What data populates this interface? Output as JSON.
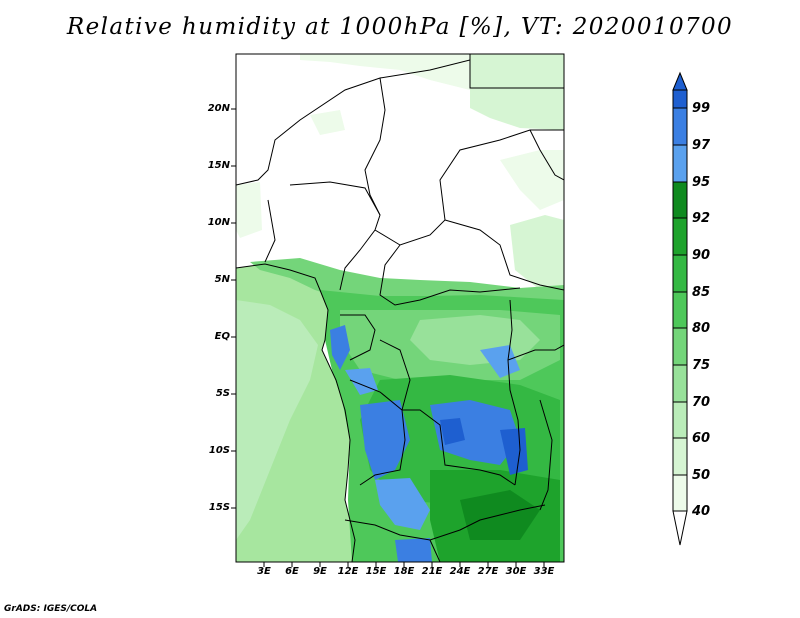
{
  "title": "Relative humidity at 1000hPa [%], VT: 2020010700",
  "credit": "GrADS: IGES/COLA",
  "y_axis_labels": [
    "20N",
    "15N",
    "10N",
    "5N",
    "EQ",
    "5S",
    "10S",
    "15S"
  ],
  "x_axis_labels": [
    "3E",
    "6E",
    "9E",
    "12E",
    "15E",
    "18E",
    "21E",
    "24E",
    "27E",
    "30E",
    "33E"
  ],
  "colorbar": {
    "labels": [
      "99",
      "97",
      "95",
      "92",
      "90",
      "85",
      "80",
      "75",
      "70",
      "60",
      "50",
      "40"
    ],
    "colors": [
      "#1e5fd0",
      "#3b7fe2",
      "#5aa1ee",
      "#0f8a1f",
      "#1ea32c",
      "#34b843",
      "#4ec85a",
      "#74d57a",
      "#98e19a",
      "#baecb9",
      "#d6f5d3",
      "#edfbea",
      "#ffffff"
    ]
  },
  "colors": {
    "land_dry": "#ffffff",
    "ocean": "#a7e69f",
    "border": "#000000"
  }
}
